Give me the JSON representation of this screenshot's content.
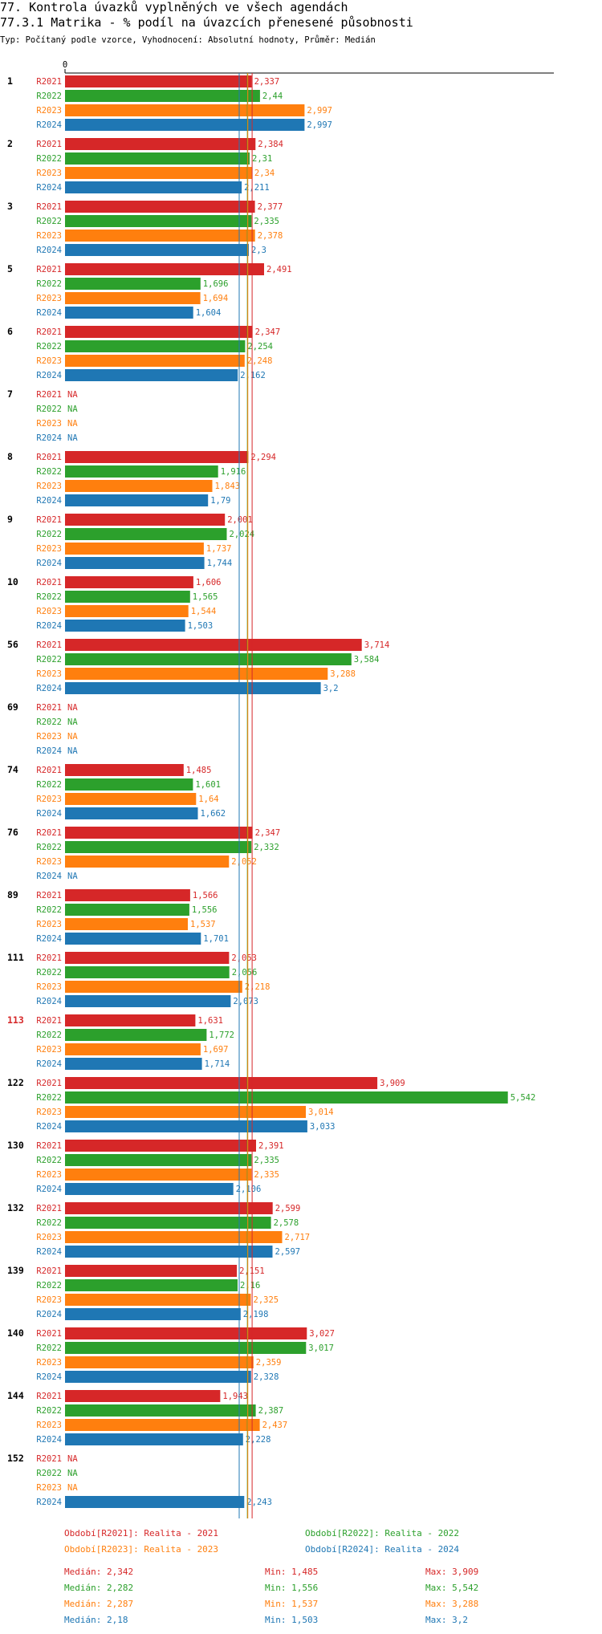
{
  "header": {
    "title": "77. Kontrola úvazků vyplněných ve všech agendách",
    "subtitle": "77.3.1 Matrika - % podíl na úvazcích přenesené působnosti",
    "meta": "Typ: Počítaný podle vzorce, Vyhodnocení: Absolutní hodnoty, Průměr: Medián"
  },
  "chart_data": {
    "type": "bar",
    "orientation": "horizontal",
    "axis_zero_label": "0",
    "xlim": [
      0,
      5.8
    ],
    "series": [
      {
        "name": "R2021",
        "color": "#d62728",
        "legend": "Období[R2021]: Realita - 2021"
      },
      {
        "name": "R2022",
        "color": "#2ca02c",
        "legend": "Období[R2022]: Realita - 2022"
      },
      {
        "name": "R2023",
        "color": "#ff7f0e",
        "legend": "Období[R2023]: Realita - 2023"
      },
      {
        "name": "R2024",
        "color": "#1f77b4",
        "legend": "Období[R2024]: Realita - 2024"
      }
    ],
    "na_label": "NA",
    "groups": [
      {
        "id": "1",
        "highlight": false,
        "values": [
          "2,337",
          "2,44",
          "2,997",
          "2,997"
        ]
      },
      {
        "id": "2",
        "highlight": false,
        "values": [
          "2,384",
          "2,31",
          "2,34",
          "2,211"
        ]
      },
      {
        "id": "3",
        "highlight": false,
        "values": [
          "2,377",
          "2,335",
          "2,378",
          "2,3"
        ]
      },
      {
        "id": "5",
        "highlight": false,
        "values": [
          "2,491",
          "1,696",
          "1,694",
          "1,604"
        ]
      },
      {
        "id": "6",
        "highlight": false,
        "values": [
          "2,347",
          "2,254",
          "2,248",
          "2,162"
        ]
      },
      {
        "id": "7",
        "highlight": false,
        "values": [
          null,
          null,
          null,
          null
        ]
      },
      {
        "id": "8",
        "highlight": false,
        "values": [
          "2,294",
          "1,916",
          "1,843",
          "1,79"
        ]
      },
      {
        "id": "9",
        "highlight": false,
        "values": [
          "2,001",
          "2,024",
          "1,737",
          "1,744"
        ]
      },
      {
        "id": "10",
        "highlight": false,
        "values": [
          "1,606",
          "1,565",
          "1,544",
          "1,503"
        ]
      },
      {
        "id": "56",
        "highlight": false,
        "values": [
          "3,714",
          "3,584",
          "3,288",
          "3,2"
        ]
      },
      {
        "id": "69",
        "highlight": false,
        "values": [
          null,
          null,
          null,
          null
        ]
      },
      {
        "id": "74",
        "highlight": false,
        "values": [
          "1,485",
          "1,601",
          "1,64",
          "1,662"
        ]
      },
      {
        "id": "76",
        "highlight": false,
        "values": [
          "2,347",
          "2,332",
          "2,052",
          null
        ]
      },
      {
        "id": "89",
        "highlight": false,
        "values": [
          "1,566",
          "1,556",
          "1,537",
          "1,701"
        ]
      },
      {
        "id": "111",
        "highlight": false,
        "values": [
          "2,053",
          "2,056",
          "2,218",
          "2,073"
        ]
      },
      {
        "id": "113",
        "highlight": true,
        "values": [
          "1,631",
          "1,772",
          "1,697",
          "1,714"
        ]
      },
      {
        "id": "122",
        "highlight": false,
        "values": [
          "3,909",
          "5,542",
          "3,014",
          "3,033"
        ]
      },
      {
        "id": "130",
        "highlight": false,
        "values": [
          "2,391",
          "2,335",
          "2,335",
          "2,106"
        ]
      },
      {
        "id": "132",
        "highlight": false,
        "values": [
          "2,599",
          "2,578",
          "2,717",
          "2,597"
        ]
      },
      {
        "id": "139",
        "highlight": false,
        "values": [
          "2,151",
          "2,16",
          "2,325",
          "2,198"
        ]
      },
      {
        "id": "140",
        "highlight": false,
        "values": [
          "3,027",
          "3,017",
          "2,359",
          "2,328"
        ]
      },
      {
        "id": "144",
        "highlight": false,
        "values": [
          "1,943",
          "2,387",
          "2,437",
          "2,228"
        ]
      },
      {
        "id": "152",
        "highlight": false,
        "values": [
          null,
          null,
          null,
          "2,243"
        ]
      }
    ],
    "medians": [
      2.342,
      2.282,
      2.287,
      2.18
    ],
    "stats": [
      {
        "median": "Medián: 2,342",
        "min": "Min: 1,485",
        "max": "Max: 3,909"
      },
      {
        "median": "Medián: 2,282",
        "min": "Min: 1,556",
        "max": "Max: 5,542"
      },
      {
        "median": "Medián: 2,287",
        "min": "Min: 1,537",
        "max": "Max: 3,288"
      },
      {
        "median": "Medián: 2,18",
        "min": "Min: 1,503",
        "max": "Max: 3,2"
      }
    ]
  }
}
